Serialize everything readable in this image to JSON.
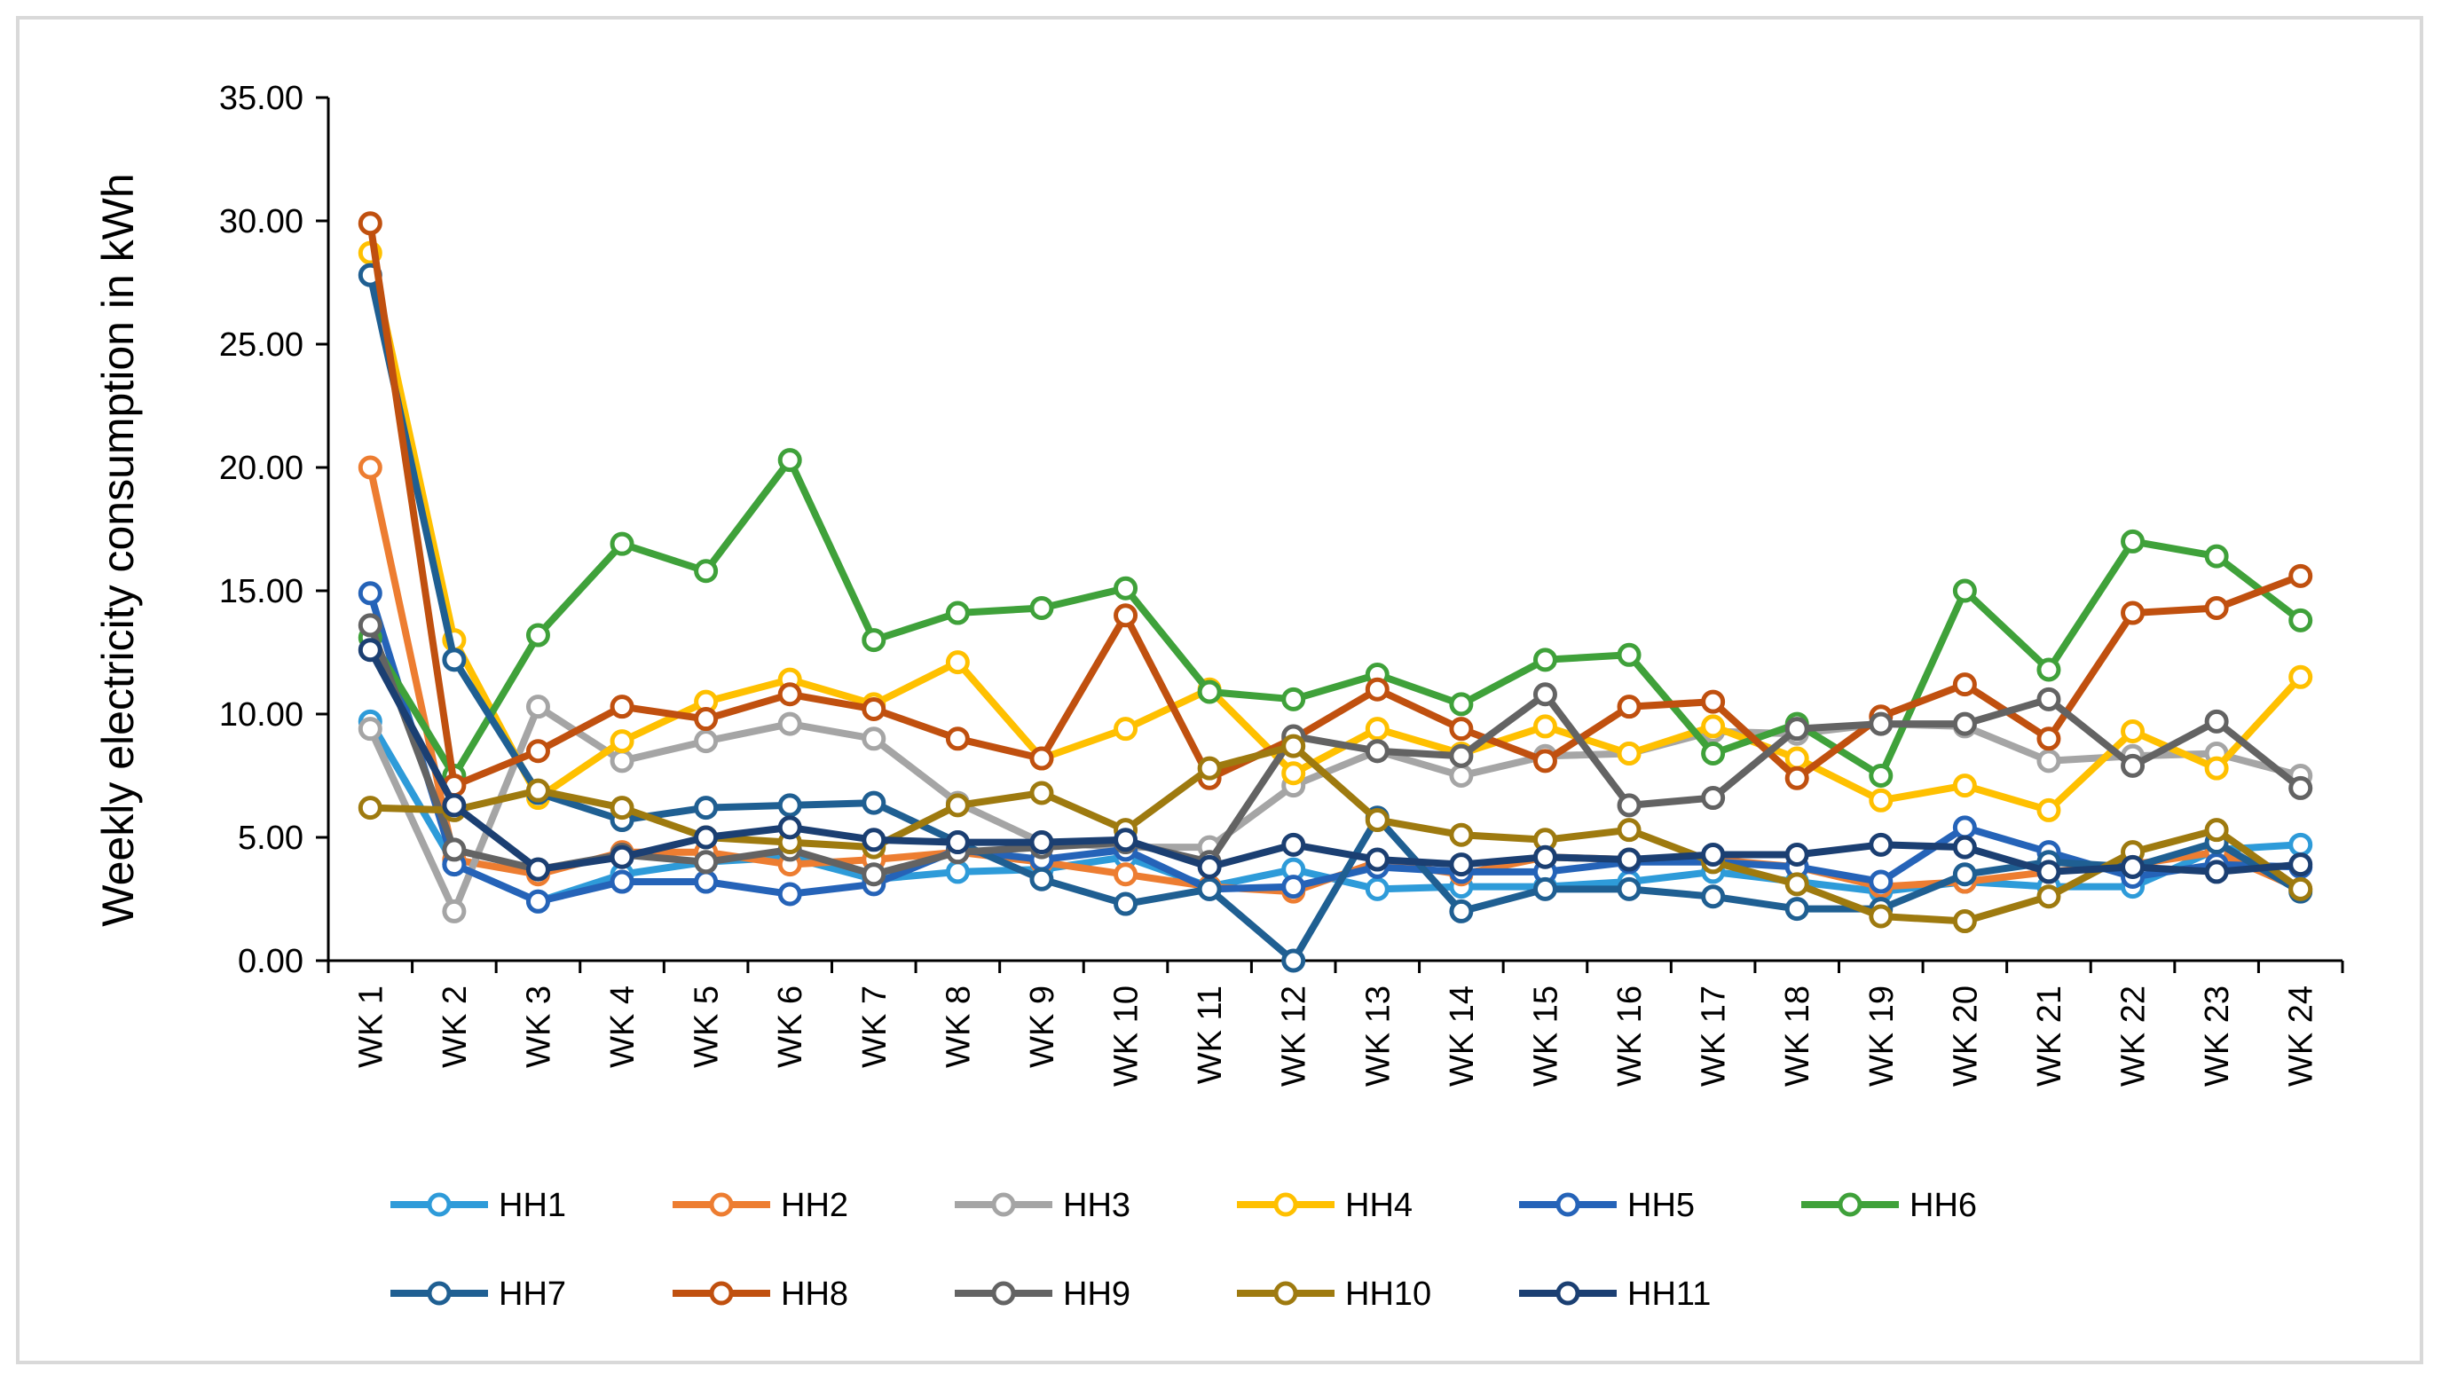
{
  "chart_data": {
    "type": "line",
    "title": "",
    "xlabel": "",
    "ylabel": "Weekly electricity consumption in kWh",
    "ylim": [
      0,
      35
    ],
    "yticks": [
      "0.00",
      "5.00",
      "10.00",
      "15.00",
      "20.00",
      "25.00",
      "30.00",
      "35.00"
    ],
    "categories": [
      "WK 1",
      "WK 2",
      "WK 3",
      "WK 4",
      "WK 5",
      "WK 6",
      "WK 7",
      "WK 8",
      "WK 9",
      "WK 10",
      "WK 11",
      "WK 12",
      "WK 13",
      "WK 14",
      "WK 15",
      "WK 16",
      "WK 17",
      "WK 18",
      "WK 19",
      "WK 20",
      "WK 21",
      "WK 22",
      "WK 23",
      "WK 24"
    ],
    "legend_position": "bottom",
    "series": [
      {
        "name": "HH1",
        "color": "#2e9bd9",
        "values": [
          9.7,
          3.9,
          2.4,
          3.5,
          4.0,
          4.2,
          3.3,
          3.6,
          3.7,
          4.2,
          3.0,
          3.7,
          2.9,
          3.0,
          3.0,
          3.2,
          3.6,
          3.2,
          2.8,
          3.2,
          3.0,
          3.0,
          4.5,
          4.7
        ]
      },
      {
        "name": "HH2",
        "color": "#ed7d31",
        "values": [
          20.0,
          4.1,
          3.5,
          4.4,
          4.4,
          3.9,
          4.1,
          4.4,
          4.0,
          3.5,
          3.0,
          2.8,
          4.0,
          3.5,
          4.2,
          4.1,
          4.1,
          3.8,
          3.0,
          3.2,
          3.6,
          3.9,
          4.4,
          2.9
        ]
      },
      {
        "name": "HH3",
        "color": "#a5a5a5",
        "values": [
          9.4,
          2.0,
          10.3,
          8.1,
          8.9,
          9.6,
          9.0,
          6.4,
          4.8,
          4.6,
          4.6,
          7.1,
          8.5,
          7.5,
          8.3,
          8.4,
          9.3,
          9.2,
          9.6,
          9.5,
          8.1,
          8.3,
          8.4,
          7.5
        ]
      },
      {
        "name": "HH4",
        "color": "#ffc000",
        "values": [
          28.7,
          13.0,
          6.6,
          8.9,
          10.5,
          11.4,
          10.4,
          12.1,
          8.2,
          9.4,
          11.0,
          7.6,
          9.4,
          8.4,
          9.5,
          8.4,
          9.5,
          8.2,
          6.5,
          7.1,
          6.1,
          9.3,
          7.8,
          11.5
        ]
      },
      {
        "name": "HH5",
        "color": "#2563b8",
        "values": [
          14.9,
          3.9,
          2.4,
          3.2,
          3.2,
          2.7,
          3.1,
          4.5,
          4.1,
          4.5,
          2.9,
          3.0,
          3.8,
          3.6,
          3.6,
          4.0,
          4.0,
          3.8,
          3.2,
          5.4,
          4.4,
          3.4,
          3.9,
          3.8
        ]
      },
      {
        "name": "HH6",
        "color": "#3fa13a",
        "values": [
          13.1,
          7.5,
          13.2,
          16.9,
          15.8,
          20.3,
          13.0,
          14.1,
          14.3,
          15.1,
          10.9,
          10.6,
          11.6,
          10.4,
          12.2,
          12.4,
          8.4,
          9.6,
          7.5,
          15.0,
          11.8,
          17.0,
          16.4,
          13.8
        ]
      },
      {
        "name": "HH7",
        "color": "#1f5f92",
        "values": [
          27.8,
          12.2,
          6.8,
          5.7,
          6.2,
          6.3,
          6.4,
          4.8,
          3.3,
          2.3,
          2.9,
          0.0,
          5.8,
          2.0,
          2.9,
          2.9,
          2.6,
          2.1,
          2.1,
          3.5,
          4.0,
          3.8,
          4.8,
          2.8
        ]
      },
      {
        "name": "HH8",
        "color": "#c0500f",
        "values": [
          29.9,
          7.1,
          8.5,
          10.3,
          9.8,
          10.8,
          10.2,
          9.0,
          8.2,
          14.0,
          7.4,
          9.0,
          11.0,
          9.4,
          8.1,
          10.3,
          10.5,
          7.4,
          9.9,
          11.2,
          9.0,
          14.1,
          14.3,
          15.6
        ]
      },
      {
        "name": "HH9",
        "color": "#636363",
        "values": [
          13.6,
          4.5,
          3.7,
          4.3,
          4.0,
          4.5,
          3.5,
          4.4,
          4.6,
          4.8,
          4.0,
          9.1,
          8.5,
          8.3,
          10.8,
          6.3,
          6.6,
          9.4,
          9.6,
          9.6,
          10.6,
          7.9,
          9.7,
          7.0
        ]
      },
      {
        "name": "HH10",
        "color": "#9e7a0f",
        "values": [
          6.2,
          6.1,
          6.9,
          6.2,
          5.0,
          4.8,
          4.6,
          6.3,
          6.8,
          5.3,
          7.8,
          8.7,
          5.7,
          5.1,
          4.9,
          5.3,
          4.0,
          3.1,
          1.8,
          1.6,
          2.6,
          4.4,
          5.3,
          2.9
        ]
      },
      {
        "name": "HH11",
        "color": "#1b3f72",
        "values": [
          12.6,
          6.3,
          3.7,
          4.2,
          5.0,
          5.4,
          4.9,
          4.8,
          4.8,
          4.9,
          3.8,
          4.7,
          4.1,
          3.9,
          4.2,
          4.1,
          4.3,
          4.3,
          4.7,
          4.6,
          3.6,
          3.8,
          3.6,
          3.9
        ]
      }
    ]
  }
}
